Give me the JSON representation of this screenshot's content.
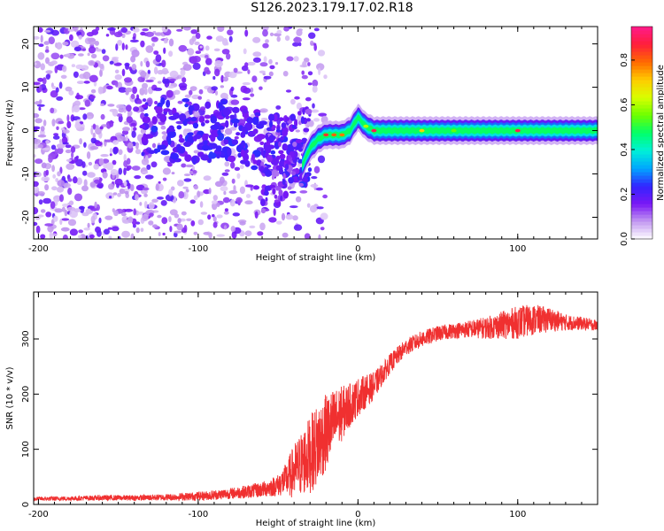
{
  "figure": {
    "title": "S126.2023.179.17.02.R18"
  },
  "chart_data": [
    {
      "type": "heatmap",
      "xlabel": "Height of straight line (km)",
      "ylabel": "Frequency (Hz)",
      "xlim": [
        -203,
        150
      ],
      "ylim": [
        -25,
        24
      ],
      "xticks": [
        -200,
        -100,
        0,
        100
      ],
      "yticks": [
        -20,
        -10,
        0,
        10,
        20
      ],
      "colorbar": {
        "label": "Normalized spectral amplitude",
        "range": [
          0,
          0.95
        ],
        "ticks": [
          "0.0",
          "0.2",
          "0.4",
          "0.6",
          "0.8"
        ],
        "colormap": [
          "#ffffff",
          "#c39af0",
          "#7a17f5",
          "#3224ff",
          "#00a6ff",
          "#00f0d8",
          "#00ff6a",
          "#6cff00",
          "#d8ff00",
          "#ffcc00",
          "#ff6a00",
          "#ff1f3a",
          "#ff1a8a"
        ]
      },
      "ridge": {
        "x": [
          -35,
          -30,
          -25,
          -20,
          -15,
          -10,
          -5,
          0,
          5,
          10,
          20,
          40,
          60,
          80,
          100,
          120,
          140,
          150
        ],
        "y": [
          -8,
          -4,
          -2,
          -1,
          -1,
          -1,
          0,
          3,
          1,
          0,
          0,
          0,
          0,
          0,
          0,
          0,
          0,
          0
        ]
      },
      "noise_region": {
        "x": [
          -203,
          -30
        ],
        "y": [
          -25,
          24
        ]
      },
      "grid": false
    },
    {
      "type": "line",
      "xlabel": "Height of straight line (km)",
      "ylabel": "SNR (10 * v/v)",
      "xlim": [
        -203,
        150
      ],
      "ylim": [
        0,
        385
      ],
      "xticks": [
        -200,
        -100,
        0,
        100
      ],
      "yticks": [
        0,
        100,
        200,
        300
      ],
      "series": [
        {
          "color": "#f03030",
          "x": [
            -203,
            -180,
            -160,
            -140,
            -120,
            -100,
            -90,
            -80,
            -70,
            -60,
            -50,
            -45,
            -40,
            -35,
            -30,
            -25,
            -20,
            -15,
            -10,
            -5,
            0,
            5,
            10,
            15,
            20,
            30,
            40,
            50,
            60,
            70,
            80,
            90,
            100,
            110,
            120,
            130,
            140,
            150
          ],
          "y": [
            10,
            11,
            12,
            12,
            13,
            15,
            17,
            20,
            23,
            27,
            35,
            45,
            60,
            75,
            90,
            110,
            130,
            150,
            165,
            180,
            195,
            205,
            215,
            235,
            255,
            285,
            300,
            310,
            315,
            318,
            320,
            325,
            330,
            335,
            335,
            330,
            328,
            325
          ],
          "jitter": [
            4,
            4,
            5,
            5,
            6,
            8,
            9,
            10,
            12,
            14,
            20,
            30,
            50,
            60,
            70,
            75,
            70,
            60,
            50,
            40,
            35,
            30,
            25,
            20,
            18,
            15,
            15,
            14,
            14,
            16,
            20,
            25,
            30,
            28,
            22,
            15,
            12,
            10
          ]
        }
      ],
      "grid": false
    }
  ]
}
